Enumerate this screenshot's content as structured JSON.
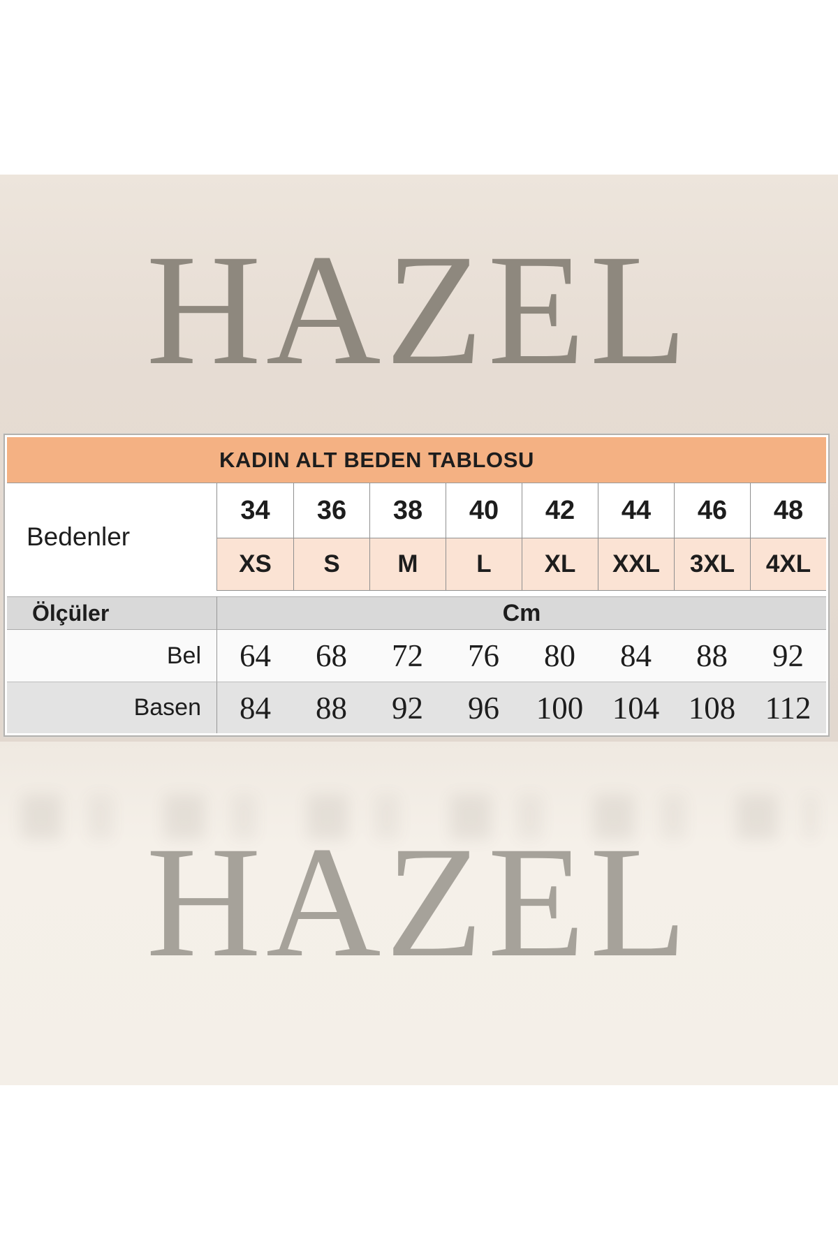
{
  "brand": {
    "name_top": "HAZEL",
    "name_bottom": "HAZEL"
  },
  "table": {
    "title": "KADIN ALT BEDEN TABLOSU",
    "row_headers": {
      "sizes_label": "Bedenler",
      "measures_label": "Ölçüler",
      "unit_label": "Cm",
      "waist_label": "Bel",
      "hips_label": "Basen"
    },
    "sizes_eu": [
      "34",
      "36",
      "38",
      "40",
      "42",
      "44",
      "46",
      "48"
    ],
    "sizes_intl": [
      "XS",
      "S",
      "M",
      "L",
      "XL",
      "XXL",
      "3XL",
      "4XL"
    ],
    "waist_cm": [
      "64",
      "68",
      "72",
      "76",
      "80",
      "84",
      "88",
      "92"
    ],
    "hips_cm": [
      "84",
      "88",
      "92",
      "96",
      "100",
      "104",
      "108",
      "112"
    ]
  },
  "colors": {
    "header_orange": "#f4b183",
    "size_row_peach": "#fbe3d4",
    "measure_row_gray": "#d9d9d9",
    "hips_row_gray": "#e3e3e3",
    "beige_top_band": "#e6dcd3",
    "beige_bottom_band": "#f4efe8",
    "logo_gray_top": "#8e887e",
    "logo_gray_bottom": "#a6a29a"
  }
}
